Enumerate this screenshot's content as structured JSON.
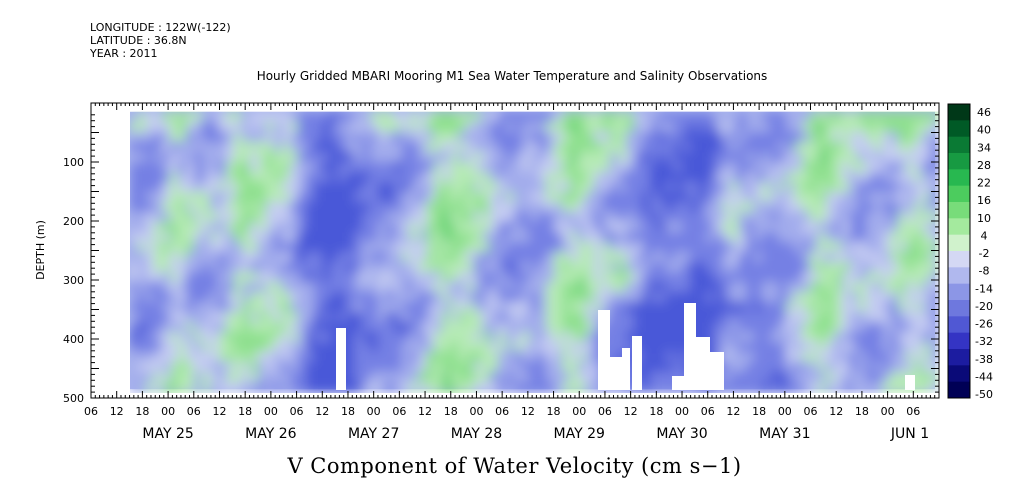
{
  "header": {
    "longitude": "LONGITUDE : 122W(-122)",
    "latitude": "LATITUDE : 36.8N",
    "year": "YEAR : 2011",
    "title": "Hourly Gridded MBARI Mooring M1 Sea Water Temperature and Salinity Observations"
  },
  "main_title": "V Component of Water Velocity (cm s−1)",
  "chart_data": {
    "type": "heatmap",
    "title": "Hourly Gridded MBARI Mooring M1 Sea Water Temperature and Salinity Observations",
    "subtitle": "V Component of Water Velocity (cm s−1)",
    "xlabel": "",
    "ylabel": "DEPTH (m)",
    "ylim": [
      500,
      0
    ],
    "yticks": [
      100,
      200,
      300,
      400,
      500
    ],
    "ytick_labels": [
      "100",
      "200",
      "300",
      "400",
      "500"
    ],
    "xticks_hours": [
      "06",
      "12",
      "18",
      "00",
      "06",
      "12",
      "18",
      "00",
      "06",
      "12",
      "18",
      "00",
      "06",
      "12",
      "18",
      "00",
      "06",
      "12",
      "18",
      "00",
      "06",
      "12",
      "18",
      "00",
      "06",
      "12",
      "18",
      "00",
      "06",
      "12",
      "18",
      "00",
      "06"
    ],
    "xdays": [
      "MAY 25",
      "MAY 26",
      "MAY 27",
      "MAY 28",
      "MAY 29",
      "MAY 30",
      "MAY 31",
      "JUN  1"
    ],
    "colorbar_levels": [
      "46",
      "40",
      "34",
      "28",
      "22",
      "16",
      "10",
      "4",
      "-2",
      "-8",
      "-14",
      "-20",
      "-26",
      "-32",
      "-38",
      "-44",
      "-50"
    ],
    "colors": {
      "strong_negative": "#000066",
      "negative": "#8c96e6",
      "weak": "#c8cff0",
      "positive": "#8ee68e",
      "strong_positive": "#003300"
    },
    "data_coverage": {
      "start": "2011-05-25 14:00",
      "end": "2011-06-01 09:00",
      "depth_range_m": [
        15,
        485
      ]
    },
    "grid": false
  }
}
